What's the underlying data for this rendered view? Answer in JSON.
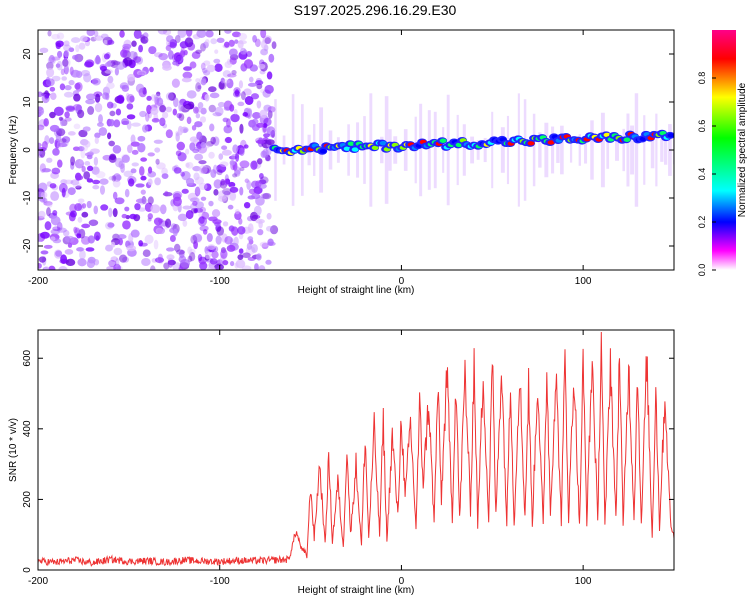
{
  "title": "S197.2025.296.16.29.E30",
  "chart_data": [
    {
      "type": "heatmap",
      "title": "S197.2025.296.16.29.E30",
      "xlabel": "Height of straight line (km)",
      "ylabel": "Frequency (Hz)",
      "xlim": [
        -200,
        150
      ],
      "ylim": [
        -25,
        25
      ],
      "xticks": [
        -200,
        -100,
        0,
        100
      ],
      "xtick_labels": [
        "-200",
        "-100",
        "0",
        "100"
      ],
      "yticks": [
        -20,
        -10,
        0,
        10,
        20
      ],
      "ytick_labels": [
        "-20",
        "-10",
        "0",
        "10",
        "20"
      ],
      "colorbar": {
        "label": "Normalized spectral amplitude",
        "range": [
          0,
          1
        ],
        "ticks": [
          0.0,
          0.2,
          0.4,
          0.6,
          0.8
        ],
        "tick_labels": [
          "0.0",
          "0.2",
          "0.4",
          "0.6",
          "0.8"
        ],
        "colors": [
          "#ffffff",
          "#ff00ff",
          "#0000ff",
          "#00ffff",
          "#00ff00",
          "#ffff00",
          "#ff0000",
          "#ff0088"
        ]
      },
      "features": {
        "noise_region_km": [
          -200,
          -70
        ],
        "signal_start_km": -70,
        "signal_band_hz": [
          0,
          3
        ]
      }
    },
    {
      "type": "line",
      "xlabel": "Height of straight line (km)",
      "ylabel": "SNR (10 * v/v)",
      "xlim": [
        -200,
        150
      ],
      "ylim": [
        0,
        680
      ],
      "xticks": [
        -200,
        -100,
        0,
        100
      ],
      "xtick_labels": [
        "-200",
        "-100",
        "0",
        "100"
      ],
      "yticks": [
        0,
        200,
        400,
        600
      ],
      "ytick_labels": [
        "0",
        "200",
        "400",
        "600"
      ],
      "line_color": "#ee3333",
      "series": [
        {
          "name": "SNR",
          "x": [
            -200,
            -190,
            -180,
            -170,
            -160,
            -150,
            -140,
            -130,
            -120,
            -110,
            -100,
            -90,
            -80,
            -70,
            -62,
            -58,
            -55,
            -52,
            -50,
            -48,
            -45,
            -42,
            -40,
            -38,
            -35,
            -32,
            -30,
            -28,
            -25,
            -22,
            -20,
            -18,
            -15,
            -12,
            -10,
            -8,
            -5,
            -2,
            0,
            2,
            5,
            8,
            10,
            12,
            15,
            18,
            20,
            22,
            25,
            28,
            30,
            32,
            35,
            38,
            40,
            42,
            45,
            48,
            50,
            52,
            55,
            58,
            60,
            62,
            65,
            68,
            70,
            72,
            75,
            78,
            80,
            82,
            85,
            88,
            90,
            92,
            95,
            98,
            100,
            102,
            105,
            108,
            110,
            112,
            115,
            118,
            120,
            122,
            125,
            128,
            130,
            132,
            135,
            138,
            140,
            142,
            145,
            148,
            150
          ],
          "values": [
            25,
            22,
            28,
            20,
            30,
            24,
            26,
            22,
            28,
            25,
            24,
            27,
            26,
            28,
            30,
            110,
            60,
            40,
            240,
            90,
            300,
            70,
            320,
            80,
            250,
            60,
            360,
            100,
            300,
            70,
            380,
            90,
            400,
            100,
            420,
            80,
            380,
            150,
            440,
            200,
            420,
            120,
            460,
            250,
            480,
            130,
            520,
            200,
            560,
            150,
            540,
            140,
            560,
            170,
            590,
            130,
            560,
            140,
            600,
            150,
            580,
            130,
            560,
            120,
            560,
            150,
            520,
            130,
            540,
            120,
            570,
            160,
            560,
            140,
            600,
            150,
            560,
            120,
            580,
            140,
            600,
            130,
            660,
            120,
            600,
            140,
            620,
            120,
            580,
            150,
            560,
            120,
            600,
            90,
            520,
            120,
            500,
            140,
            90
          ]
        }
      ]
    }
  ]
}
